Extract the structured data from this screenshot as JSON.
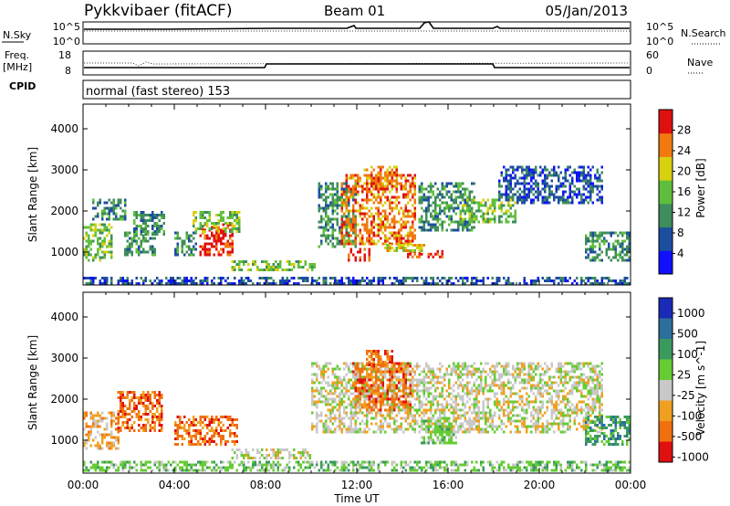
{
  "header": {
    "station": "Pykkvibaer (fitACF)",
    "beam": "Beam 01",
    "date": "05/Jan/2013"
  },
  "panels": {
    "sky": {
      "left_label": "N.Sky",
      "left_ticks": [
        "10^5",
        "10^0"
      ],
      "right_ticks": [
        "10^5",
        "10^0"
      ],
      "right_label": "N.Search"
    },
    "freq": {
      "left_label_line1": "Freq.",
      "left_label_line2": "[MHz]",
      "left_ticks": [
        "18",
        "8"
      ],
      "right_ticks": [
        "60",
        "0"
      ],
      "right_label": "Nave"
    },
    "cpid": {
      "label": "CPID",
      "text": "normal (fast stereo) 153"
    }
  },
  "chart_data": [
    {
      "type": "heatmap",
      "name": "power",
      "ylabel": "Slant Range [km]",
      "yticks": [
        1000,
        2000,
        3000,
        4000
      ],
      "ylim": [
        200,
        4600
      ],
      "xlim": [
        0,
        24
      ],
      "colorbar": {
        "label": "Power [dB]",
        "ticks": [
          "4",
          "8",
          "12",
          "16",
          "20",
          "24",
          "28"
        ],
        "colors": [
          "#1010ff",
          "#1c4ea0",
          "#3f8c5c",
          "#5fbf3c",
          "#d8d010",
          "#f07a10",
          "#e01010"
        ]
      },
      "regions": [
        {
          "t": [
            0.0,
            1.3
          ],
          "r": [
            800,
            1700
          ],
          "level": 3
        },
        {
          "t": [
            0.4,
            1.9
          ],
          "r": [
            1800,
            2300
          ],
          "level": 2
        },
        {
          "t": [
            1.8,
            3.2
          ],
          "r": [
            900,
            1500
          ],
          "level": 2
        },
        {
          "t": [
            2.2,
            3.6
          ],
          "r": [
            1400,
            2000
          ],
          "level": 2
        },
        {
          "t": [
            4.0,
            5.0
          ],
          "r": [
            900,
            1500
          ],
          "level": 2
        },
        {
          "t": [
            5.1,
            6.6
          ],
          "r": [
            900,
            1700
          ],
          "level": 6
        },
        {
          "t": [
            4.8,
            6.9
          ],
          "r": [
            1500,
            2000
          ],
          "level": 3
        },
        {
          "t": [
            6.5,
            10.2
          ],
          "r": [
            550,
            800
          ],
          "level": 3
        },
        {
          "t": [
            10.3,
            12.0
          ],
          "r": [
            1100,
            2700
          ],
          "level": 2
        },
        {
          "t": [
            11.3,
            14.6
          ],
          "r": [
            1200,
            2900
          ],
          "level": 5
        },
        {
          "t": [
            12.3,
            13.8
          ],
          "r": [
            2500,
            3100
          ],
          "level": 5
        },
        {
          "t": [
            11.6,
            12.6
          ],
          "r": [
            800,
            1100
          ],
          "level": 6
        },
        {
          "t": [
            14.2,
            15.8
          ],
          "r": [
            850,
            1050
          ],
          "level": 6
        },
        {
          "t": [
            13.2,
            15.0
          ],
          "r": [
            1000,
            1200
          ],
          "level": 4
        },
        {
          "t": [
            14.7,
            17.2
          ],
          "r": [
            1500,
            2700
          ],
          "level": 2
        },
        {
          "t": [
            16.5,
            19.0
          ],
          "r": [
            1700,
            2300
          ],
          "level": 3
        },
        {
          "t": [
            18.2,
            22.8
          ],
          "r": [
            2200,
            3100
          ],
          "level": 1
        },
        {
          "t": [
            22.0,
            24.0
          ],
          "r": [
            800,
            1500
          ],
          "level": 2
        },
        {
          "t": [
            0.0,
            24.0
          ],
          "r": [
            250,
            400
          ],
          "level": 1
        }
      ]
    },
    {
      "type": "heatmap",
      "name": "velocity",
      "ylabel": "Slant Range [km]",
      "yticks": [
        1000,
        2000,
        3000,
        4000
      ],
      "ylim": [
        200,
        4600
      ],
      "xlim": [
        0,
        24
      ],
      "xticks": [
        "00:00",
        "04:00",
        "08:00",
        "12:00",
        "16:00",
        "20:00",
        "00:00"
      ],
      "xlabel": "Time UT",
      "colorbar": {
        "label": "Velocity [m s^-1]",
        "ticks": [
          "1000",
          "500",
          "100",
          "25",
          "-25",
          "-100",
          "-500",
          "-1000"
        ],
        "colors": [
          "#1a2ab8",
          "#2c6e9c",
          "#3a9a5c",
          "#66cc33",
          "#c8c8c8",
          "#f0a020",
          "#f07010",
          "#e01010"
        ]
      },
      "regions": [
        {
          "t": [
            0.0,
            1.6
          ],
          "r": [
            800,
            1700
          ],
          "level": 5
        },
        {
          "t": [
            1.5,
            3.5
          ],
          "r": [
            1200,
            2200
          ],
          "level": 6
        },
        {
          "t": [
            4.0,
            6.8
          ],
          "r": [
            900,
            1600
          ],
          "level": 6
        },
        {
          "t": [
            6.5,
            10.0
          ],
          "r": [
            550,
            800
          ],
          "level": 4
        },
        {
          "t": [
            10.0,
            22.8
          ],
          "r": [
            1200,
            2900
          ],
          "level": 4
        },
        {
          "t": [
            11.8,
            14.4
          ],
          "r": [
            1700,
            2900
          ],
          "level": 6
        },
        {
          "t": [
            12.4,
            13.6
          ],
          "r": [
            2800,
            3200
          ],
          "level": 6
        },
        {
          "t": [
            14.8,
            16.4
          ],
          "r": [
            900,
            1500
          ],
          "level": 3
        },
        {
          "t": [
            22.0,
            24.0
          ],
          "r": [
            900,
            1600
          ],
          "level": 2
        },
        {
          "t": [
            0.0,
            24.0
          ],
          "r": [
            250,
            500
          ],
          "level": 3
        }
      ]
    }
  ]
}
